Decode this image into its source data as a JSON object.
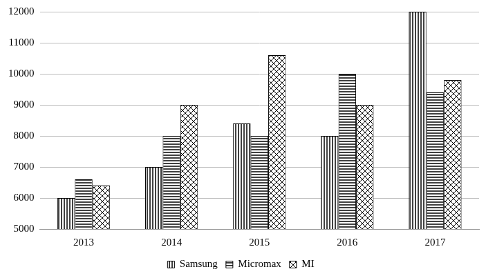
{
  "chart_data": {
    "type": "bar",
    "categories": [
      "2013",
      "2014",
      "2015",
      "2016",
      "2017"
    ],
    "series": [
      {
        "name": "Samsung",
        "color": "#000000",
        "values": [
          6000,
          7000,
          8400,
          8000,
          12000
        ]
      },
      {
        "name": "Micromax",
        "color": "#000000",
        "values": [
          6600,
          8000,
          8000,
          10000,
          9400
        ]
      },
      {
        "name": "MI",
        "color": "#000000",
        "values": [
          6400,
          9000,
          10600,
          9000,
          9800
        ]
      }
    ],
    "ylim": [
      5000,
      12000
    ],
    "yticks": [
      5000,
      6000,
      7000,
      8000,
      9000,
      10000,
      11000,
      12000
    ],
    "grid": true,
    "legend": "bottom"
  }
}
